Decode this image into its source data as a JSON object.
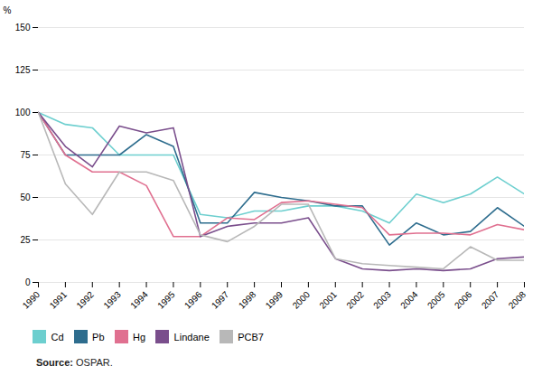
{
  "chart_data": {
    "type": "line",
    "x": [
      1990,
      1991,
      1992,
      1993,
      1994,
      1995,
      1996,
      1997,
      1998,
      1999,
      2000,
      2001,
      2002,
      2003,
      2004,
      2005,
      2006,
      2007,
      2008
    ],
    "xlim": [
      1990,
      2008
    ],
    "xticks": [
      1990,
      1991,
      1992,
      1993,
      1994,
      1995,
      1996,
      1997,
      1998,
      1999,
      2000,
      2001,
      2002,
      2003,
      2004,
      2005,
      2006,
      2007,
      2008
    ],
    "ylim": [
      0,
      150
    ],
    "yticks": [
      0,
      25,
      50,
      75,
      100,
      125,
      150
    ],
    "ylabel": "%",
    "series": [
      {
        "name": "Cd",
        "color": "#6dcfcf",
        "values": [
          100,
          93,
          91,
          75,
          75,
          75,
          40,
          38,
          42,
          42,
          45,
          45,
          42,
          35,
          52,
          47,
          52,
          62,
          52
        ]
      },
      {
        "name": "Pb",
        "color": "#2e6d8e",
        "values": [
          100,
          75,
          75,
          75,
          87,
          80,
          35,
          35,
          53,
          50,
          48,
          45,
          45,
          22,
          35,
          28,
          30,
          44,
          33
        ]
      },
      {
        "name": "Hg",
        "color": "#e07090",
        "values": [
          100,
          75,
          65,
          65,
          57,
          27,
          27,
          38,
          37,
          47,
          48,
          46,
          44,
          28,
          29,
          29,
          28,
          34,
          31
        ]
      },
      {
        "name": "Lindane",
        "color": "#7a4e8c",
        "values": [
          100,
          80,
          68,
          92,
          88,
          91,
          27,
          33,
          35,
          35,
          38,
          14,
          8,
          7,
          8,
          7,
          8,
          14,
          15
        ]
      },
      {
        "name": "PCB7",
        "color": "#b8b8b8",
        "values": [
          100,
          58,
          40,
          65,
          65,
          60,
          28,
          24,
          33,
          46,
          46,
          14,
          11,
          10,
          9,
          8,
          21,
          13,
          13
        ]
      }
    ],
    "grid": true,
    "legend": "bottom",
    "annotations": [
      "Source:",
      "OSPAR."
    ]
  }
}
